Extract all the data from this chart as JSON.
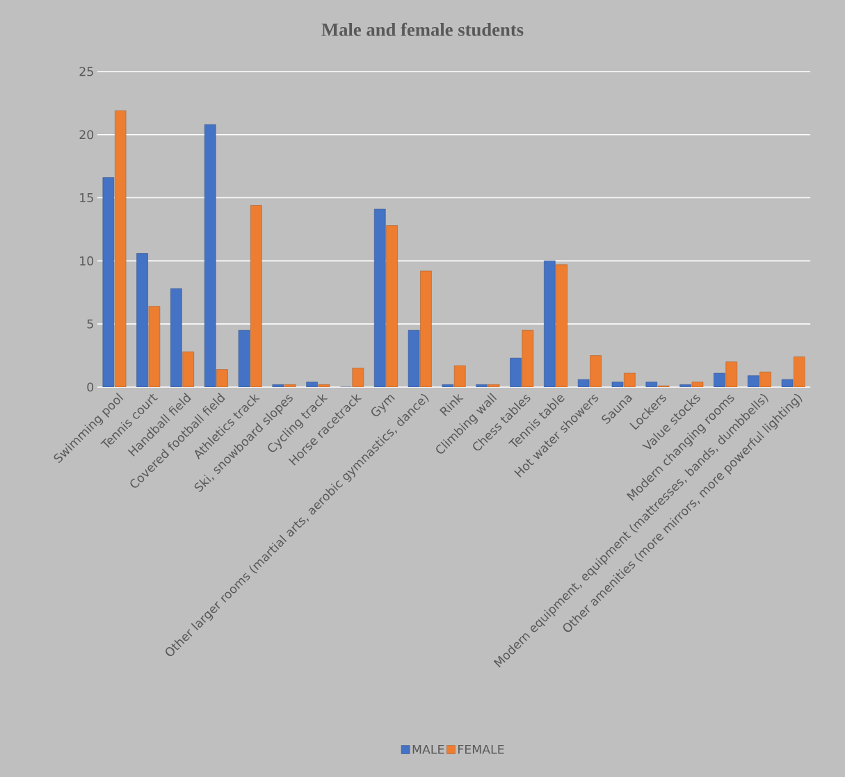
{
  "chart_data": {
    "type": "bar",
    "title": "Male and female students",
    "categories": [
      "Swimming pool",
      "Tennis court",
      "Handball field",
      "Covered football field",
      "Athletics track",
      "Ski, snowboard slopes",
      "Cycling track",
      "Horse racetrack",
      "Gym",
      "Other larger rooms (martial arts, aerobic gymnastics, dance)",
      "Rink",
      "Climbing wall",
      "Chess tables",
      "Tennis table",
      "Hot water showers",
      "Sauna",
      "Lockers",
      "Value stocks",
      "Modern changing rooms",
      "Modern equipment, equipment (mattresses, bands, dumbbells)",
      "Other amenities (more mirrors, more powerful lighting)"
    ],
    "series": [
      {
        "name": "MALE",
        "color": "#4472c4",
        "values": [
          16.6,
          10.6,
          7.8,
          20.8,
          4.5,
          0.2,
          0.4,
          0,
          14.1,
          4.5,
          0.2,
          0.2,
          2.3,
          10.0,
          0.6,
          0.4,
          0.4,
          0.2,
          1.1,
          0.9,
          0.6
        ]
      },
      {
        "name": "FEMALE",
        "color": "#ed7d31",
        "values": [
          21.9,
          6.4,
          2.8,
          1.4,
          14.4,
          0.2,
          0.2,
          1.5,
          12.8,
          9.2,
          1.7,
          0.2,
          4.5,
          9.7,
          2.5,
          1.1,
          0.1,
          0.4,
          2.0,
          1.2,
          2.4
        ]
      }
    ],
    "ylim": [
      0,
      25
    ],
    "yticks": [
      0,
      5,
      10,
      15,
      20,
      25
    ],
    "grid": "y",
    "legend": "bottom"
  }
}
